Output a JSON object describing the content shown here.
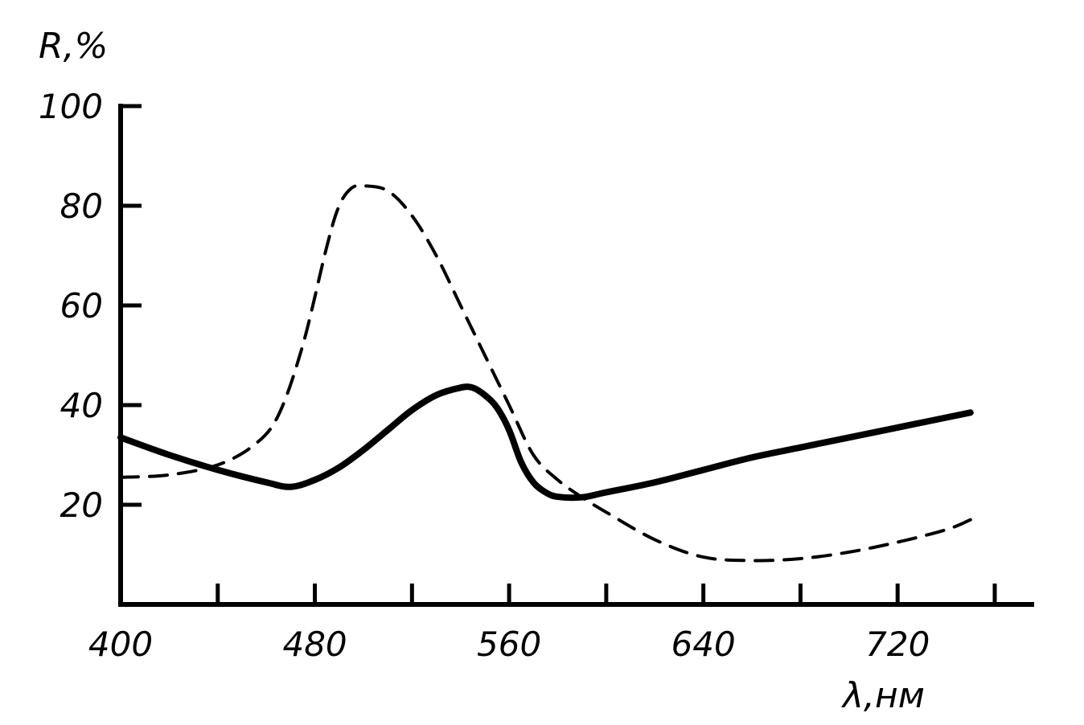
{
  "chart_data": {
    "type": "line",
    "title": "",
    "xlabel": "λ,нм",
    "ylabel": "R,%",
    "xlim": [
      400,
      770
    ],
    "ylim": [
      0,
      100
    ],
    "x_ticks": [
      400,
      440,
      480,
      520,
      560,
      600,
      640,
      680,
      720,
      760
    ],
    "x_tick_labels": [
      "400",
      "480",
      "560",
      "640",
      "720"
    ],
    "x_tick_label_values": [
      400,
      480,
      560,
      640,
      720
    ],
    "y_ticks": [
      20,
      40,
      60,
      80,
      100
    ],
    "y_tick_labels": [
      "20",
      "40",
      "60",
      "80",
      "100"
    ],
    "grid": false,
    "legend": "none",
    "series": [
      {
        "style": "solid",
        "color": "#000000",
        "x": [
          400,
          420,
          440,
          460,
          470,
          480,
          490,
          500,
          510,
          520,
          530,
          540,
          545,
          550,
          555,
          560,
          565,
          570,
          575,
          580,
          590,
          600,
          620,
          640,
          660,
          680,
          700,
          720,
          740,
          750
        ],
        "y": [
          33.5,
          30,
          27,
          24.5,
          23.6,
          25,
          27.5,
          31,
          35,
          39,
          42,
          43.5,
          43.5,
          42,
          39.5,
          35,
          28.5,
          24.5,
          22.5,
          21.6,
          21.5,
          22.5,
          24.5,
          27,
          29.5,
          31.5,
          33.5,
          35.5,
          37.5,
          38.5
        ]
      },
      {
        "style": "dashed",
        "color": "#000000",
        "x": [
          400,
          420,
          440,
          455,
          465,
          475,
          485,
          490,
          495,
          500,
          510,
          520,
          530,
          540,
          550,
          560,
          570,
          580,
          590,
          600,
          620,
          640,
          660,
          680,
          700,
          720,
          740,
          750
        ],
        "y": [
          25.5,
          26,
          28,
          32,
          38,
          52,
          72,
          80,
          83.5,
          84,
          83,
          78,
          70,
          60,
          50,
          40,
          30,
          25,
          21.5,
          18.5,
          13,
          9.5,
          8.8,
          9.2,
          10.5,
          12.5,
          15,
          17
        ]
      }
    ]
  }
}
